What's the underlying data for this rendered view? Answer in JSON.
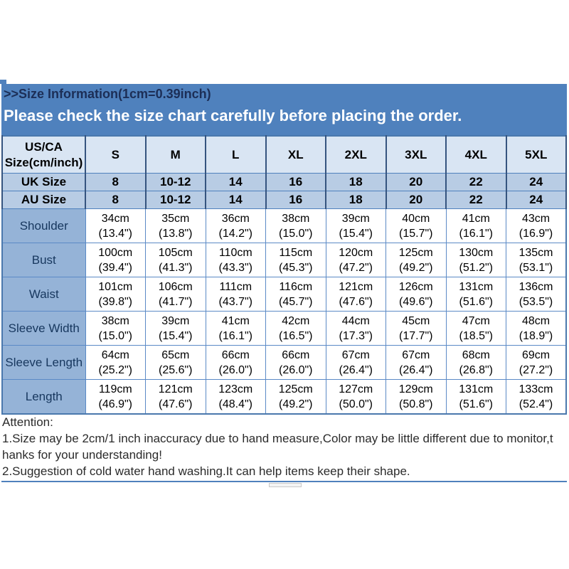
{
  "banner": {
    "title": ">>Size Information(1cm=0.39inch)",
    "subtitle": "Please check the size chart carefully before placing the order.",
    "bg_color": "#4f81bd",
    "title_color": "#1c2e56",
    "subtitle_color": "#ffffff"
  },
  "table": {
    "corner": {
      "line1": "US/CA",
      "line2": "Size(cm/inch)"
    },
    "size_headers": [
      "S",
      "M",
      "L",
      "XL",
      "2XL",
      "3XL",
      "4XL",
      "5XL"
    ],
    "uk_row": {
      "label": "UK Size",
      "values": [
        "8",
        "10-12",
        "14",
        "16",
        "18",
        "20",
        "22",
        "24"
      ]
    },
    "au_row": {
      "label": "AU Size",
      "values": [
        "8",
        "10-12",
        "14",
        "16",
        "18",
        "20",
        "22",
        "24"
      ]
    },
    "measure_rows": [
      {
        "label": "Shoulder",
        "cm": [
          "34cm",
          "35cm",
          "36cm",
          "38cm",
          "39cm",
          "40cm",
          "41cm",
          "43cm"
        ],
        "inch": [
          "(13.4\")",
          "(13.8\")",
          "(14.2\")",
          "(15.0\")",
          "(15.4\")",
          "(15.7\")",
          "(16.1\")",
          "(16.9\")"
        ]
      },
      {
        "label": "Bust",
        "cm": [
          "100cm",
          "105cm",
          "110cm",
          "115cm",
          "120cm",
          "125cm",
          "130cm",
          "135cm"
        ],
        "inch": [
          "(39.4\")",
          "(41.3\")",
          "(43.3\")",
          "(45.3\")",
          "(47.2\")",
          "(49.2\")",
          "(51.2\")",
          "(53.1\")"
        ]
      },
      {
        "label": "Waist",
        "cm": [
          "101cm",
          "106cm",
          "111cm",
          "116cm",
          "121cm",
          "126cm",
          "131cm",
          "136cm"
        ],
        "inch": [
          "(39.8\")",
          "(41.7\")",
          "(43.7\")",
          "(45.7\")",
          "(47.6\")",
          "(49.6\")",
          "(51.6\")",
          "(53.5\")"
        ]
      },
      {
        "label": "Sleeve Width",
        "cm": [
          "38cm",
          "39cm",
          "41cm",
          "42cm",
          "44cm",
          "45cm",
          "47cm",
          "48cm"
        ],
        "inch": [
          "(15.0\")",
          "(15.4\")",
          "(16.1\")",
          "(16.5\")",
          "(17.3\")",
          "(17.7\")",
          "(18.5\")",
          "(18.9\")"
        ]
      },
      {
        "label": "Sleeve Length",
        "cm": [
          "64cm",
          "65cm",
          "66cm",
          "66cm",
          "67cm",
          "67cm",
          "68cm",
          "69cm"
        ],
        "inch": [
          "(25.2\")",
          "(25.6\")",
          "(26.0\")",
          "(26.0\")",
          "(26.4\")",
          "(26.4\")",
          "(26.8\")",
          "(27.2\")"
        ]
      },
      {
        "label": "Length",
        "cm": [
          "119cm",
          "121cm",
          "123cm",
          "125cm",
          "127cm",
          "129cm",
          "131cm",
          "133cm"
        ],
        "inch": [
          "(46.9\")",
          "(47.6\")",
          "(48.4\")",
          "(49.2\")",
          "(50.0\")",
          "(50.8\")",
          "(51.6\")",
          "(52.4\")"
        ]
      }
    ]
  },
  "attention": {
    "lines": [
      "Attention:",
      "1.Size may be 2cm/1 inch inaccuracy due to hand measure,Color may be little different due to monitor,t",
      "hanks for your understanding!",
      "2.Suggestion of cold water hand washing.It can help items keep their shape."
    ]
  }
}
